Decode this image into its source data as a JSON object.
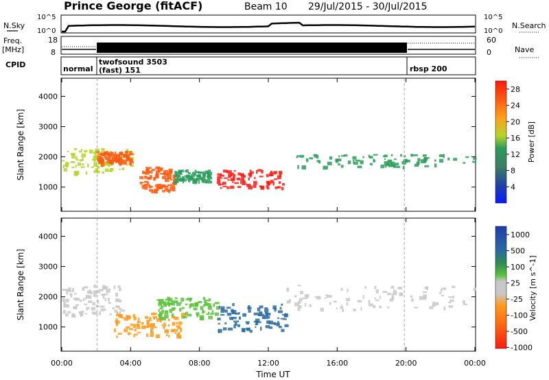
{
  "header": {
    "station": "Prince George (fitACF)",
    "beam": "Beam 10",
    "date_range": "29/Jul/2015 - 30/Jul/2015"
  },
  "nsky_panel": {
    "label": "N.Sky",
    "left_ticks": [
      "10^5",
      "10^0"
    ],
    "right_ticks": [
      "10^5",
      "10^0"
    ],
    "right_label": "N.Search"
  },
  "freq_panel": {
    "label_line1": "Freq.",
    "label_line2": "[MHz]",
    "left_ticks": [
      "18",
      "8"
    ],
    "right_ticks": [
      "60",
      "0"
    ],
    "right_label": "Nave"
  },
  "cpid_panel": {
    "label": "CPID",
    "modes": [
      {
        "line1": "normal",
        "line2": ""
      },
      {
        "line1": "twofsound 3503",
        "line2": "(fast) 151"
      },
      {
        "line1": "rbsp 200",
        "line2": ""
      }
    ]
  },
  "colors": {
    "power_scale": [
      "#0a1aff",
      "#1f3fa8",
      "#3e7f62",
      "#2a9c5a",
      "#b6d42a",
      "#ff9f1a",
      "#ff5a10",
      "#ff1a10"
    ],
    "velocity_scale": [
      "#1f3fa8",
      "#2a6aa0",
      "#2f8a55",
      "#5ac23a",
      "#c8c8c8",
      "#c8c8c8",
      "#ff9a1a",
      "#ff6a10",
      "#ff1a10"
    ]
  },
  "chart_data": [
    {
      "type": "heatmap",
      "title": "",
      "xlabel": "",
      "ylabel": "Slant Range [km]",
      "x_ticks": [
        "00:00",
        "04:00",
        "08:00",
        "12:00",
        "16:00",
        "20:00",
        "00:00"
      ],
      "y_ticks": [
        "1000",
        "2000",
        "3000",
        "4000"
      ],
      "ylim": [
        200,
        4600
      ],
      "colorbar_label": "Power [dB]",
      "colorbar_ticks": [
        "28",
        "24",
        "20",
        "16",
        "12",
        "8",
        "4"
      ],
      "colorbar_range": [
        0,
        30
      ],
      "echo_regions": [
        {
          "t_start": 0.0,
          "t_end": 4.2,
          "range_low": 1500,
          "range_high": 2300,
          "power_db": 16
        },
        {
          "t_start": 2.0,
          "t_end": 4.0,
          "range_low": 1800,
          "range_high": 2200,
          "power_db": 24
        },
        {
          "t_start": 4.5,
          "t_end": 6.5,
          "range_low": 900,
          "range_high": 1700,
          "power_db": 26
        },
        {
          "t_start": 6.5,
          "t_end": 8.5,
          "range_low": 1200,
          "range_high": 1600,
          "power_db": 14
        },
        {
          "t_start": 9.0,
          "t_end": 12.8,
          "range_low": 1000,
          "range_high": 1600,
          "power_db": 28
        },
        {
          "t_start": 13.5,
          "t_end": 24.0,
          "range_low": 1700,
          "range_high": 2100,
          "power_db": 12
        }
      ]
    },
    {
      "type": "heatmap",
      "title": "",
      "xlabel": "Time UT",
      "ylabel": "Slant Range [km]",
      "x_ticks": [
        "00:00",
        "04:00",
        "08:00",
        "12:00",
        "16:00",
        "20:00",
        "00:00"
      ],
      "y_ticks": [
        "1000",
        "2000",
        "3000",
        "4000"
      ],
      "ylim": [
        200,
        4600
      ],
      "colorbar_label": "Velocity [m s^-1]",
      "colorbar_ticks": [
        "1000",
        "500",
        "100",
        "25",
        "-25",
        "-100",
        "-500",
        "-1000"
      ],
      "colorbar_range": [
        -1000,
        1000
      ],
      "echo_regions": [
        {
          "t_start": 0.0,
          "t_end": 3.5,
          "range_low": 1400,
          "range_high": 2400,
          "velocity": 0
        },
        {
          "t_start": 3.0,
          "t_end": 7.0,
          "range_low": 700,
          "range_high": 1500,
          "velocity": -300
        },
        {
          "t_start": 5.5,
          "t_end": 9.0,
          "range_low": 1300,
          "range_high": 2000,
          "velocity": 150
        },
        {
          "t_start": 9.0,
          "t_end": 13.0,
          "range_low": 900,
          "range_high": 1800,
          "velocity": 400
        },
        {
          "t_start": 13.0,
          "t_end": 24.0,
          "range_low": 1600,
          "range_high": 2400,
          "velocity": 0
        }
      ]
    }
  ]
}
